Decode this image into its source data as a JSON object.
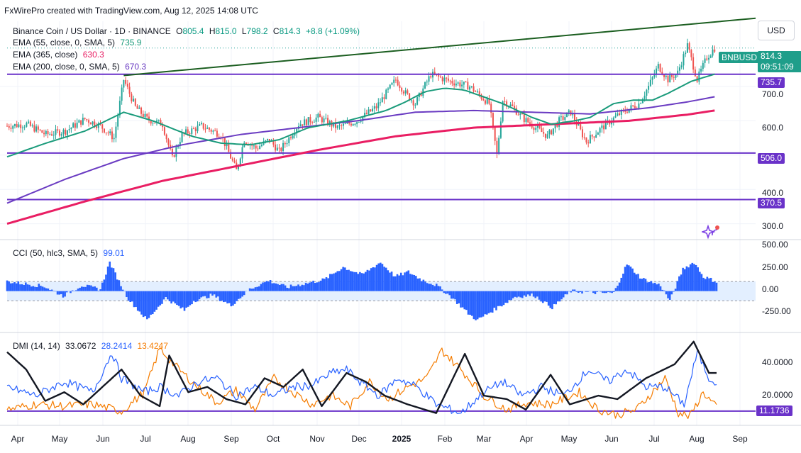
{
  "credit": "FxWirePro created with TradingView.com, Aug 12, 2025 14:08 UTC",
  "currency_button": "USD",
  "legend": {
    "symbol": "Binance Coin / US Dollar · 1D · BINANCE",
    "o_label": "O",
    "o": "805.4",
    "h_label": "H",
    "h": "815.0",
    "l_label": "L",
    "l": "798.2",
    "c_label": "C",
    "c": "814.3",
    "change": "+8.8 (+1.09%)",
    "ema55_label": "EMA (55, close, 0, SMA, 5)",
    "ema55": "735.9",
    "ema365_label": "EMA (365, close)",
    "ema365": "630.3",
    "ema200_label": "EMA (200, close, 0, SMA, 5)",
    "ema200": "670.3",
    "cci_label": "CCI (50, hlc3, SMA, 5)",
    "cci": "99.01",
    "dmi_label": "DMI (14, 14)",
    "adx": "33.0672",
    "plus_di": "28.2414",
    "minus_di": "13.4247"
  },
  "badges": {
    "symbol": "BNBUSD",
    "price": "814.3",
    "countdown": "09:51:09",
    "level_735": "735.7",
    "level_506": "506.0",
    "level_370": "370.5",
    "dmi_level": "11.1736"
  },
  "colors": {
    "up": "#26a69a",
    "down": "#ef5350",
    "ema55": "#1a9b7b",
    "ema200": "#6a3bc2",
    "ema365": "#e91e63",
    "trendline": "#1b5e20",
    "level": "#6a32c9",
    "cci_fill": "#2962ff",
    "cci_band": "#e3efff",
    "adx": "#131722",
    "plus_di": "#2962ff",
    "minus_di": "#f57c00"
  },
  "chart_data": {
    "type": "candlestick",
    "symbol": "BNBUSD",
    "timeframe": "1D",
    "x_months": [
      "Apr",
      "May",
      "Jun",
      "Jul",
      "Aug",
      "Sep",
      "Oct",
      "Nov",
      "Dec",
      "2025",
      "Feb",
      "Mar",
      "Apr",
      "May",
      "Jun",
      "Jul",
      "Aug",
      "Sep"
    ],
    "price_axis_ticks": [
      "700.0",
      "600.0",
      "400.0",
      "300.0"
    ],
    "price_ylim": [
      260,
      890
    ],
    "horizontal_levels": [
      735.7,
      506.0,
      370.5
    ],
    "price_path": [
      [
        0,
        585
      ],
      [
        10,
        590
      ],
      [
        20,
        560
      ],
      [
        30,
        570
      ],
      [
        40,
        605
      ],
      [
        48,
        585
      ],
      [
        55,
        550
      ],
      [
        60,
        720
      ],
      [
        66,
        640
      ],
      [
        72,
        605
      ],
      [
        80,
        590
      ],
      [
        85,
        490
      ],
      [
        90,
        560
      ],
      [
        100,
        585
      ],
      [
        110,
        560
      ],
      [
        118,
        455
      ],
      [
        122,
        545
      ],
      [
        128,
        520
      ],
      [
        135,
        545
      ],
      [
        140,
        510
      ],
      [
        150,
        590
      ],
      [
        160,
        610
      ],
      [
        170,
        580
      ],
      [
        180,
        600
      ],
      [
        190,
        640
      ],
      [
        200,
        720
      ],
      [
        205,
        680
      ],
      [
        210,
        650
      ],
      [
        218,
        735
      ],
      [
        228,
        715
      ],
      [
        238,
        700
      ],
      [
        248,
        650
      ],
      [
        252,
        500
      ],
      [
        255,
        660
      ],
      [
        260,
        640
      ],
      [
        266,
        605
      ],
      [
        272,
        580
      ],
      [
        278,
        555
      ],
      [
        284,
        600
      ],
      [
        290,
        625
      ],
      [
        295,
        570
      ],
      [
        298,
        540
      ],
      [
        305,
        575
      ],
      [
        315,
        620
      ],
      [
        325,
        650
      ],
      [
        330,
        700
      ],
      [
        335,
        760
      ],
      [
        340,
        720
      ],
      [
        345,
        740
      ],
      [
        350,
        820
      ],
      [
        355,
        720
      ],
      [
        360,
        785
      ],
      [
        364,
        812
      ]
    ],
    "ema55_path": [
      [
        0,
        495
      ],
      [
        20,
        535
      ],
      [
        40,
        570
      ],
      [
        60,
        625
      ],
      [
        75,
        600
      ],
      [
        95,
        555
      ],
      [
        110,
        535
      ],
      [
        125,
        530
      ],
      [
        140,
        545
      ],
      [
        155,
        580
      ],
      [
        175,
        600
      ],
      [
        195,
        630
      ],
      [
        205,
        655
      ],
      [
        215,
        685
      ],
      [
        225,
        695
      ],
      [
        235,
        690
      ],
      [
        245,
        670
      ],
      [
        255,
        650
      ],
      [
        270,
        610
      ],
      [
        280,
        590
      ],
      [
        292,
        600
      ],
      [
        300,
        610
      ],
      [
        312,
        650
      ],
      [
        322,
        660
      ],
      [
        332,
        660
      ],
      [
        340,
        680
      ],
      [
        352,
        715
      ],
      [
        364,
        736
      ]
    ],
    "ema200_path": [
      [
        0,
        360
      ],
      [
        30,
        430
      ],
      [
        60,
        490
      ],
      [
        90,
        530
      ],
      [
        120,
        560
      ],
      [
        150,
        580
      ],
      [
        180,
        600
      ],
      [
        210,
        625
      ],
      [
        240,
        630
      ],
      [
        270,
        625
      ],
      [
        300,
        620
      ],
      [
        330,
        638
      ],
      [
        350,
        655
      ],
      [
        364,
        670
      ]
    ],
    "ema365_path": [
      [
        0,
        300
      ],
      [
        40,
        365
      ],
      [
        80,
        425
      ],
      [
        120,
        470
      ],
      [
        160,
        515
      ],
      [
        200,
        555
      ],
      [
        240,
        580
      ],
      [
        280,
        590
      ],
      [
        320,
        600
      ],
      [
        350,
        618
      ],
      [
        364,
        630
      ]
    ],
    "trendline": [
      [
        60,
        732
      ],
      [
        364,
        888
      ]
    ],
    "cci_axis_ticks": [
      "500.00",
      "250.00",
      "0.00",
      "-250.00"
    ],
    "cci_ylim": [
      -400,
      520
    ],
    "cci_band": [
      -100,
      100
    ],
    "cci_path": [
      [
        0,
        100
      ],
      [
        20,
        50
      ],
      [
        30,
        -50
      ],
      [
        40,
        60
      ],
      [
        50,
        20
      ],
      [
        55,
        300
      ],
      [
        60,
        100
      ],
      [
        65,
        -80
      ],
      [
        75,
        -300
      ],
      [
        85,
        -70
      ],
      [
        95,
        -200
      ],
      [
        100,
        -100
      ],
      [
        110,
        -40
      ],
      [
        120,
        -150
      ],
      [
        130,
        20
      ],
      [
        140,
        110
      ],
      [
        150,
        40
      ],
      [
        160,
        80
      ],
      [
        170,
        120
      ],
      [
        180,
        250
      ],
      [
        190,
        170
      ],
      [
        200,
        300
      ],
      [
        208,
        150
      ],
      [
        215,
        200
      ],
      [
        222,
        120
      ],
      [
        230,
        60
      ],
      [
        238,
        -60
      ],
      [
        248,
        -250
      ],
      [
        252,
        -300
      ],
      [
        262,
        -180
      ],
      [
        272,
        -60
      ],
      [
        282,
        -40
      ],
      [
        292,
        -170
      ],
      [
        302,
        0
      ],
      [
        310,
        -10
      ],
      [
        318,
        -20
      ],
      [
        325,
        -20
      ],
      [
        332,
        280
      ],
      [
        340,
        130
      ],
      [
        350,
        60
      ],
      [
        355,
        -100
      ],
      [
        362,
        230
      ],
      [
        368,
        300
      ],
      [
        373,
        150
      ],
      [
        380,
        99
      ]
    ],
    "dmi_axis_ticks": [
      "40.0000",
      "20.0000"
    ],
    "dmi_ylim": [
      5,
      55
    ],
    "dmi_level": 11.1736,
    "adx_path": [
      [
        0,
        45
      ],
      [
        10,
        35
      ],
      [
        20,
        17
      ],
      [
        30,
        22
      ],
      [
        40,
        15
      ],
      [
        55,
        30
      ],
      [
        60,
        35
      ],
      [
        70,
        20
      ],
      [
        80,
        14
      ],
      [
        85,
        43
      ],
      [
        95,
        22
      ],
      [
        105,
        25
      ],
      [
        115,
        18
      ],
      [
        125,
        15
      ],
      [
        135,
        30
      ],
      [
        145,
        25
      ],
      [
        155,
        35
      ],
      [
        165,
        14
      ],
      [
        178,
        33
      ],
      [
        188,
        28
      ],
      [
        198,
        20
      ],
      [
        210,
        15
      ],
      [
        225,
        10
      ],
      [
        240,
        44
      ],
      [
        250,
        20
      ],
      [
        262,
        18
      ],
      [
        272,
        12
      ],
      [
        285,
        32
      ],
      [
        295,
        15
      ],
      [
        310,
        20
      ],
      [
        320,
        18
      ],
      [
        335,
        30
      ],
      [
        350,
        38
      ],
      [
        360,
        51
      ],
      [
        368,
        33
      ],
      [
        372,
        33
      ]
    ],
    "plus_di_path": [
      [
        0,
        25
      ],
      [
        15,
        20
      ],
      [
        30,
        28
      ],
      [
        45,
        22
      ],
      [
        55,
        45
      ],
      [
        60,
        30
      ],
      [
        72,
        22
      ],
      [
        80,
        25
      ],
      [
        90,
        20
      ],
      [
        100,
        28
      ],
      [
        110,
        30
      ],
      [
        120,
        20
      ],
      [
        130,
        25
      ],
      [
        140,
        20
      ],
      [
        150,
        25
      ],
      [
        160,
        26
      ],
      [
        170,
        33
      ],
      [
        178,
        35
      ],
      [
        185,
        28
      ],
      [
        195,
        20
      ],
      [
        205,
        30
      ],
      [
        215,
        25
      ],
      [
        225,
        15
      ],
      [
        238,
        10
      ],
      [
        250,
        22
      ],
      [
        260,
        28
      ],
      [
        270,
        20
      ],
      [
        280,
        25
      ],
      [
        292,
        20
      ],
      [
        305,
        35
      ],
      [
        315,
        28
      ],
      [
        325,
        35
      ],
      [
        335,
        25
      ],
      [
        345,
        25
      ],
      [
        355,
        15
      ],
      [
        362,
        45
      ],
      [
        368,
        30
      ],
      [
        372,
        28
      ]
    ],
    "minus_di_path": [
      [
        0,
        12
      ],
      [
        15,
        15
      ],
      [
        30,
        14
      ],
      [
        45,
        15
      ],
      [
        60,
        11
      ],
      [
        72,
        22
      ],
      [
        80,
        47
      ],
      [
        90,
        35
      ],
      [
        100,
        25
      ],
      [
        110,
        16
      ],
      [
        120,
        23
      ],
      [
        130,
        12
      ],
      [
        140,
        30
      ],
      [
        150,
        22
      ],
      [
        160,
        15
      ],
      [
        170,
        20
      ],
      [
        180,
        14
      ],
      [
        190,
        28
      ],
      [
        200,
        18
      ],
      [
        210,
        25
      ],
      [
        220,
        30
      ],
      [
        228,
        46
      ],
      [
        238,
        35
      ],
      [
        250,
        20
      ],
      [
        262,
        12
      ],
      [
        272,
        16
      ],
      [
        285,
        15
      ],
      [
        300,
        22
      ],
      [
        310,
        12
      ],
      [
        320,
        9
      ],
      [
        330,
        12
      ],
      [
        345,
        30
      ],
      [
        352,
        10
      ],
      [
        358,
        8
      ],
      [
        365,
        22
      ],
      [
        372,
        13
      ]
    ]
  }
}
